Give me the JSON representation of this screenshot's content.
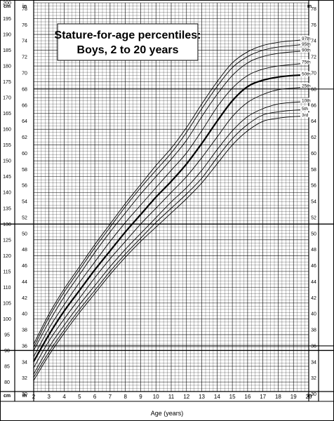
{
  "chart_data": {
    "type": "line",
    "title": "Stature-for-age percentiles:",
    "subtitle": "Boys, 2 to 20 years",
    "xlabel": "Age (years)",
    "y_left_unit": "cm",
    "y_right_unit": "in",
    "x_ticks": [
      "2",
      "3",
      "4",
      "5",
      "6",
      "7",
      "8",
      "9",
      "10",
      "11",
      "12",
      "13",
      "14",
      "15",
      "16",
      "17",
      "18",
      "19",
      "20"
    ],
    "cm_ticks": [
      "80",
      "85",
      "90",
      "95",
      "100",
      "105",
      "110",
      "115",
      "120",
      "125",
      "130",
      "135",
      "140",
      "145",
      "150",
      "155",
      "160",
      "165",
      "170",
      "175",
      "180",
      "185",
      "190",
      "195",
      "200"
    ],
    "in_ticks": [
      "30",
      "32",
      "34",
      "36",
      "38",
      "40",
      "42",
      "44",
      "46",
      "48",
      "50",
      "52",
      "54",
      "56",
      "58",
      "60",
      "62",
      "64",
      "66",
      "68",
      "70",
      "72",
      "74",
      "76",
      "78"
    ],
    "xlim": [
      2,
      20
    ],
    "ylim_cm": [
      77,
      200
    ],
    "grid": true,
    "x": [
      2,
      3,
      4,
      5,
      6,
      7,
      8,
      9,
      10,
      11,
      12,
      13,
      14,
      15,
      16,
      17,
      18,
      19,
      20
    ],
    "series": [
      {
        "name": "97th",
        "values": [
          92.0,
          101.5,
          109.5,
          116.5,
          123.5,
          130.0,
          136.5,
          142.5,
          148.5,
          154.0,
          160.5,
          168.0,
          175.0,
          181.0,
          184.5,
          186.5,
          187.5,
          188.0,
          188.5
        ]
      },
      {
        "name": "95th",
        "values": [
          91.0,
          100.5,
          108.5,
          115.5,
          122.5,
          129.0,
          135.5,
          141.5,
          147.0,
          152.5,
          159.0,
          166.5,
          173.5,
          179.5,
          183.0,
          185.0,
          186.0,
          186.5,
          187.0
        ]
      },
      {
        "name": "90th",
        "values": [
          90.0,
          99.0,
          107.0,
          114.0,
          121.0,
          127.5,
          133.5,
          139.5,
          145.0,
          150.5,
          156.5,
          164.0,
          171.0,
          177.0,
          181.0,
          183.0,
          184.0,
          184.5,
          184.8
        ]
      },
      {
        "name": "75th",
        "values": [
          88.0,
          97.0,
          104.5,
          111.5,
          118.0,
          124.5,
          130.5,
          136.0,
          141.5,
          147.0,
          152.5,
          159.5,
          167.0,
          173.0,
          177.0,
          179.0,
          180.0,
          180.5,
          181.0
        ]
      },
      {
        "name": "50th",
        "values": [
          86.5,
          95.0,
          102.5,
          109.0,
          115.5,
          121.5,
          127.5,
          133.0,
          138.5,
          143.5,
          149.0,
          155.5,
          162.5,
          169.0,
          173.5,
          175.5,
          176.5,
          177.0,
          177.2
        ]
      },
      {
        "name": "25th",
        "values": [
          84.5,
          93.0,
          100.0,
          106.5,
          113.0,
          119.0,
          124.5,
          130.0,
          135.0,
          140.0,
          145.0,
          151.0,
          157.5,
          164.0,
          168.5,
          171.0,
          172.5,
          173.0,
          173.5
        ]
      },
      {
        "name": "10th",
        "values": [
          82.5,
          91.0,
          98.0,
          104.5,
          110.5,
          116.5,
          122.0,
          127.0,
          132.0,
          137.0,
          141.5,
          147.0,
          153.5,
          159.5,
          164.0,
          166.5,
          168.0,
          168.5,
          168.8
        ]
      },
      {
        "name": "5th",
        "values": [
          81.5,
          89.5,
          96.5,
          103.0,
          109.0,
          115.0,
          120.5,
          125.5,
          130.5,
          135.0,
          139.5,
          144.5,
          151.0,
          157.0,
          161.5,
          164.5,
          165.5,
          166.0,
          166.2
        ]
      },
      {
        "name": "3rd",
        "values": [
          80.5,
          88.5,
          95.5,
          102.0,
          108.0,
          114.0,
          119.5,
          124.5,
          129.0,
          133.5,
          138.0,
          143.0,
          149.0,
          155.0,
          159.5,
          162.5,
          163.5,
          164.0,
          164.2
        ]
      }
    ],
    "emphasized_series": [
      "50th"
    ]
  }
}
